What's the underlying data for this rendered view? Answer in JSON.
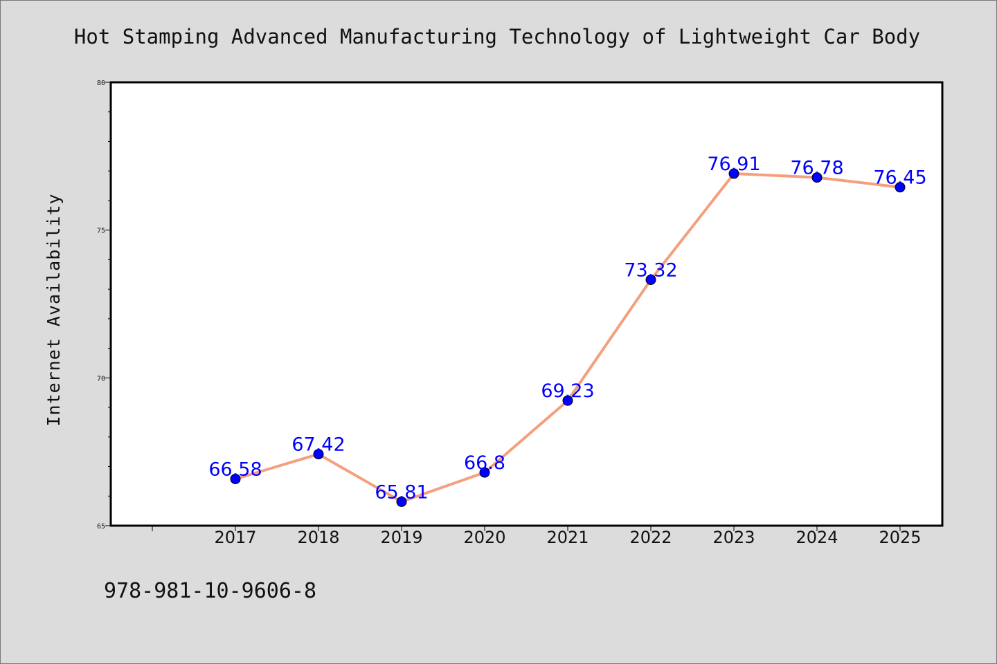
{
  "chart_data": {
    "type": "line",
    "title": "Hot Stamping Advanced Manufacturing Technology of Lightweight Car Body",
    "xlabel": "",
    "ylabel": "Internet Availability",
    "categories": [
      "2017",
      "2018",
      "2019",
      "2020",
      "2021",
      "2022",
      "2023",
      "2024",
      "2025"
    ],
    "series": [
      {
        "values": [
          66.58,
          67.42,
          65.81,
          66.8,
          69.23,
          73.32,
          76.91,
          76.78,
          76.45
        ],
        "labels": [
          "66.58",
          "67.42",
          "65.81",
          "66.8",
          "69.23",
          "73.32",
          "76.91",
          "76.78",
          "76.45"
        ]
      }
    ],
    "ylim": [
      65,
      80
    ],
    "yticks": [
      "65",
      "70",
      "75",
      "80"
    ],
    "grid": false,
    "legend": "none"
  },
  "colors": {
    "background": "#dcdcdc",
    "plot_background": "#ffffff",
    "line": "#f4a07f",
    "marker": "#0000ff",
    "data_label": "#0000ff"
  },
  "footer_text": "978-981-10-9606-8"
}
